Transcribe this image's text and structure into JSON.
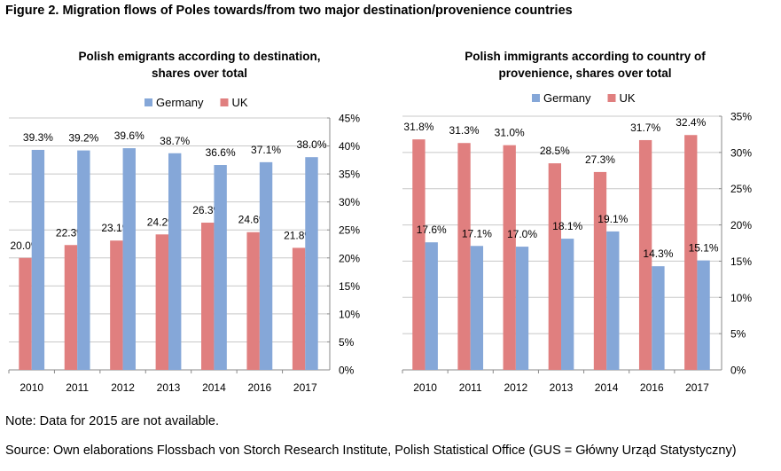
{
  "figure_title": "Figure 2. Migration flows of Poles towards/from two major destination/provenience countries",
  "note": "Note: Data for 2015 are not available.",
  "source": "Source: Own elaborations Flossbach von Storch Research Institute, Polish Statistical Office (GUS = Główny Urząd Statystyczny)",
  "chart_data": [
    {
      "type": "bar",
      "title": "Polish emigrants according to destination, shares over total",
      "title_lines": [
        "Polish emigrants according to destination,",
        "shares over total"
      ],
      "categories": [
        "2010",
        "2011",
        "2012",
        "2013",
        "2014",
        "2016",
        "2017"
      ],
      "series": [
        {
          "name": "UK",
          "color": "#e07f7f",
          "values": [
            20.0,
            22.3,
            23.1,
            24.2,
            26.3,
            24.6,
            21.8
          ],
          "labels": [
            "20.0%",
            "22.3%",
            "23.1%",
            "24.2%",
            "26.3%",
            "24.6%",
            "21.8%"
          ]
        },
        {
          "name": "Germany",
          "color": "#85a7d8",
          "values": [
            39.3,
            39.2,
            39.6,
            38.7,
            36.6,
            37.1,
            38.0
          ],
          "labels": [
            "39.3%",
            "39.2%",
            "39.6%",
            "38.7%",
            "36.6%",
            "37.1%",
            "38.0%"
          ]
        }
      ],
      "legend_order": [
        "Germany",
        "UK"
      ],
      "legend_position": "top",
      "ylim": [
        0,
        45
      ],
      "yticks": [
        0,
        5,
        10,
        15,
        20,
        25,
        30,
        35,
        40,
        45
      ],
      "ytick_labels": [
        "0%",
        "5%",
        "10%",
        "15%",
        "20%",
        "25%",
        "30%",
        "35%",
        "40%",
        "45%"
      ],
      "y_axis_side": "right",
      "grid": true,
      "xlabel": "",
      "ylabel": ""
    },
    {
      "type": "bar",
      "title": "Polish immigrants according to country of provenience, shares over total",
      "title_lines": [
        "Polish immigrants according to country of",
        "provenience, shares over total"
      ],
      "categories": [
        "2010",
        "2011",
        "2012",
        "2013",
        "2014",
        "2016",
        "2017"
      ],
      "series": [
        {
          "name": "UK",
          "color": "#e07f7f",
          "values": [
            31.8,
            31.3,
            31.0,
            28.5,
            27.3,
            31.7,
            32.4
          ],
          "labels": [
            "31.8%",
            "31.3%",
            "31.0%",
            "28.5%",
            "27.3%",
            "31.7%",
            "32.4%"
          ]
        },
        {
          "name": "Germany",
          "color": "#85a7d8",
          "values": [
            17.6,
            17.1,
            17.0,
            18.1,
            19.1,
            14.3,
            15.1
          ],
          "labels": [
            "17.6%",
            "17.1%",
            "17.0%",
            "18.1%",
            "19.1%",
            "14.3%",
            "15.1%"
          ]
        }
      ],
      "legend_order": [
        "Germany",
        "UK"
      ],
      "legend_position": "top",
      "ylim": [
        0,
        35
      ],
      "yticks": [
        0,
        5,
        10,
        15,
        20,
        25,
        30,
        35
      ],
      "ytick_labels": [
        "0%",
        "5%",
        "10%",
        "15%",
        "20%",
        "25%",
        "30%",
        "35%"
      ],
      "y_axis_side": "right",
      "grid": true,
      "xlabel": "",
      "ylabel": ""
    }
  ]
}
